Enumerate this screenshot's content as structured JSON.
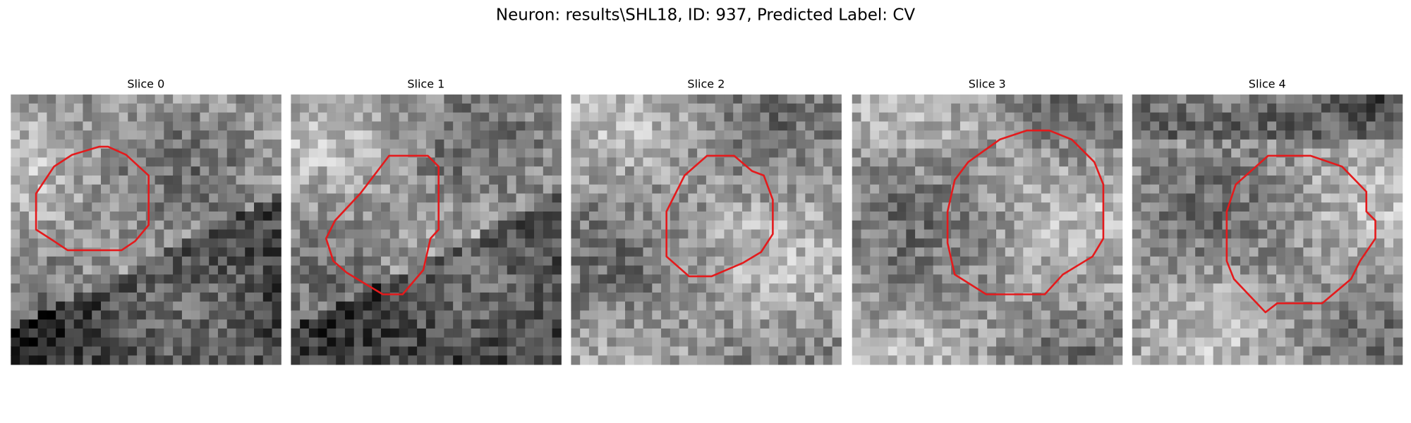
{
  "title": "Neuron: results\\SHL18, ID: 937, Predicted Label: CV",
  "panels": [
    {
      "title": "Slice 0"
    },
    {
      "title": "Slice 1"
    },
    {
      "title": "Slice 2"
    },
    {
      "title": "Slice 3"
    },
    {
      "title": "Slice 4"
    }
  ]
}
